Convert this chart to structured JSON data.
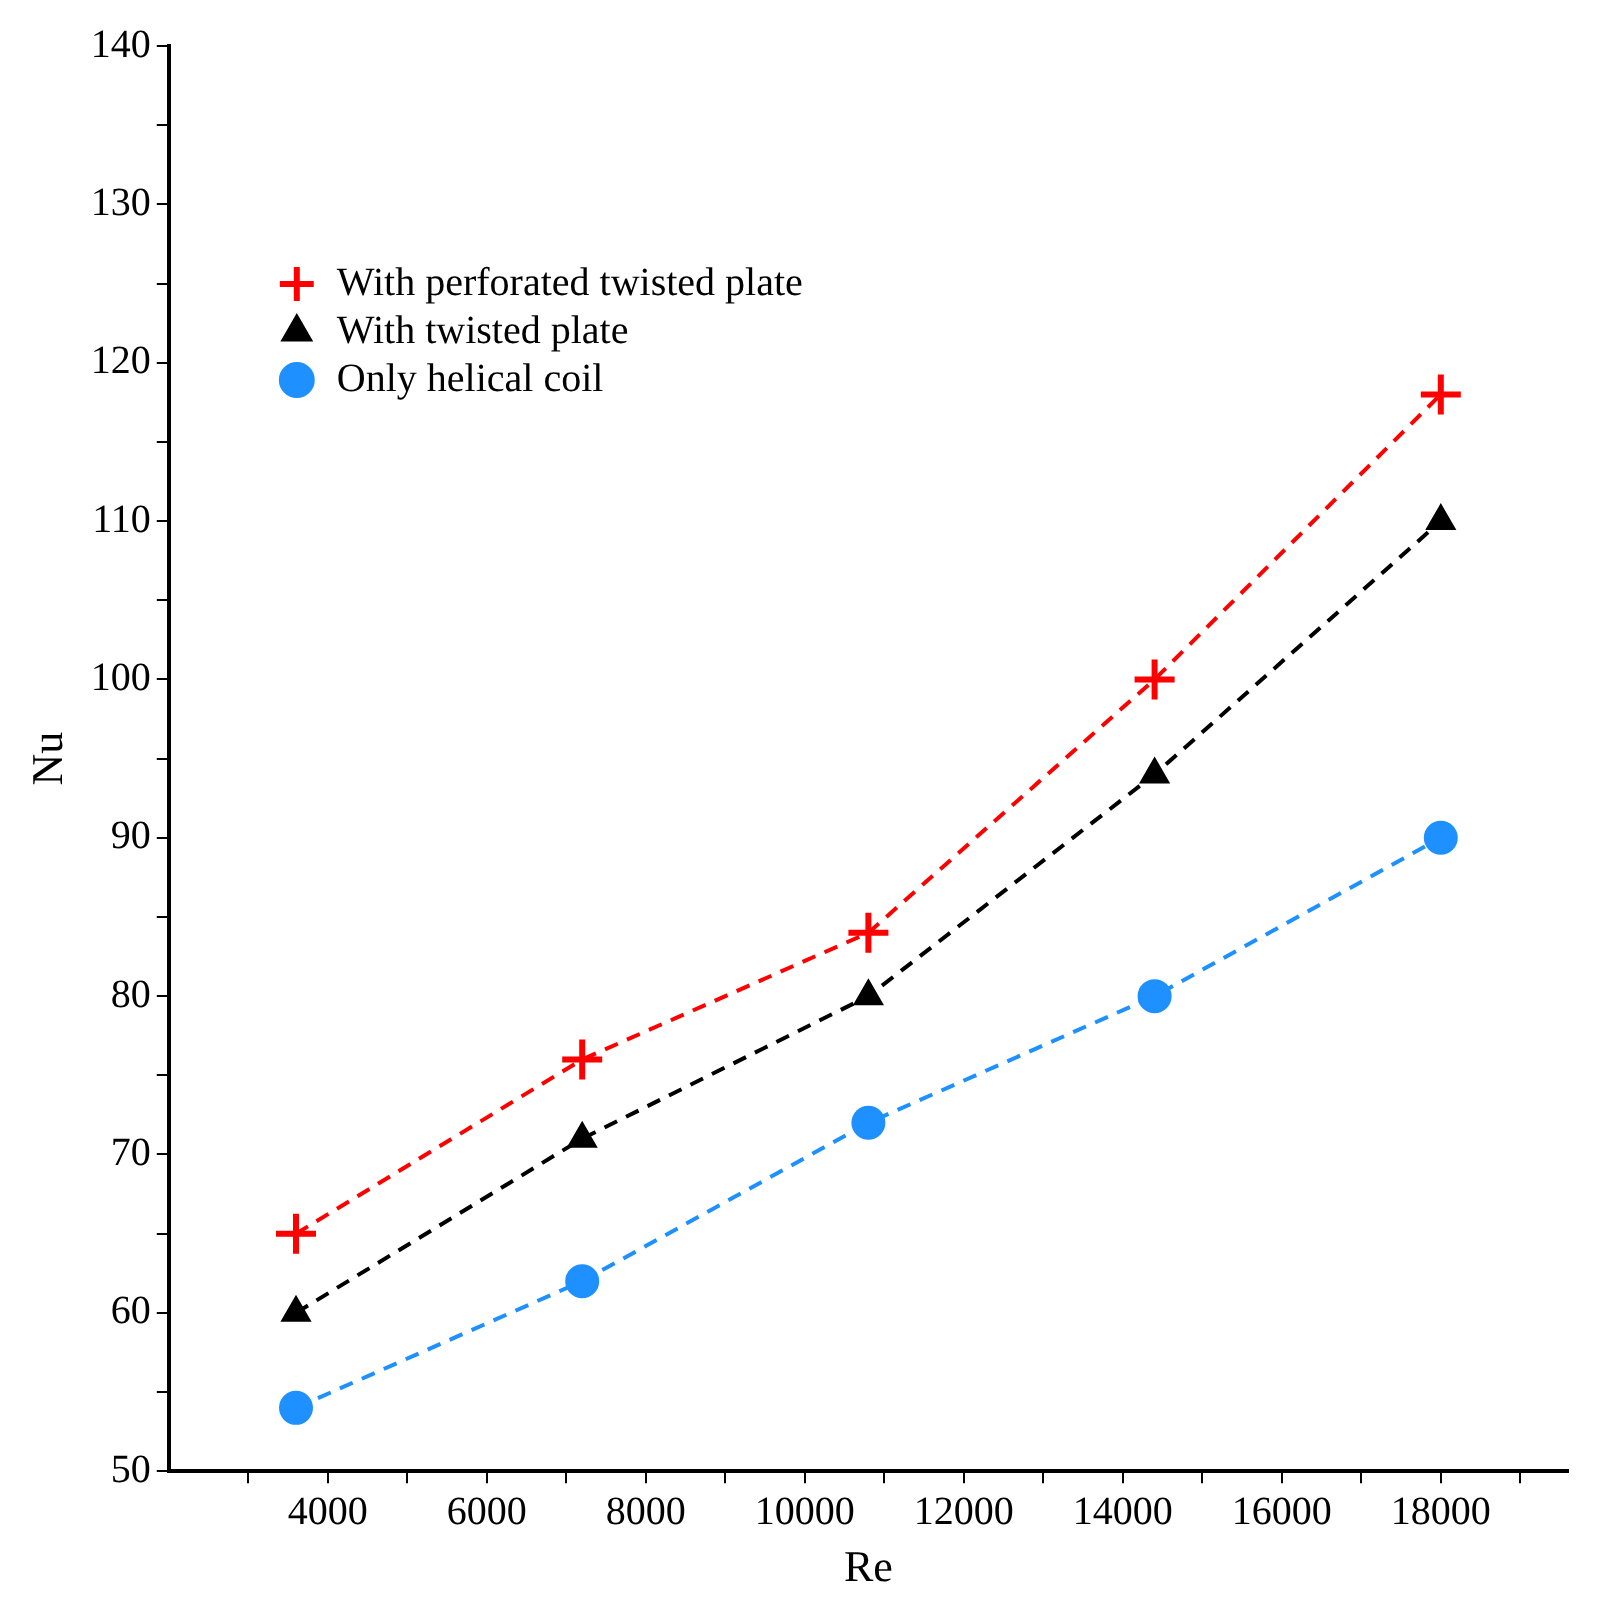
{
  "chart_data": {
    "type": "line",
    "xlabel": "Re",
    "ylabel": "Nu",
    "x": [
      3600,
      7200,
      10800,
      14400,
      18000
    ],
    "series": [
      {
        "name": "With perforated twisted plate",
        "color": "#ff0000",
        "marker": "cross",
        "values": [
          65,
          76,
          84,
          100,
          118
        ]
      },
      {
        "name": "With twisted plate",
        "color": "#000000",
        "marker": "triangle",
        "values": [
          60,
          71,
          80,
          94,
          110
        ]
      },
      {
        "name": "Only helical coil",
        "color": "#1e90ff",
        "marker": "circle",
        "values": [
          54,
          62,
          72,
          80,
          90
        ]
      }
    ],
    "xlim": [
      2000,
      19600
    ],
    "xticks": [
      {
        "value": 3000,
        "label": null
      },
      4000,
      {
        "value": 5000,
        "label": null
      },
      6000,
      {
        "value": 7000,
        "label": null
      },
      8000,
      {
        "value": 9000,
        "label": null
      },
      10000,
      {
        "value": 11000,
        "label": null
      },
      12000,
      {
        "value": 13000,
        "label": null
      },
      14000,
      {
        "value": 15000,
        "label": null
      },
      16000,
      {
        "value": 17000,
        "label": null
      },
      18000,
      {
        "value": 19000,
        "label": null
      }
    ],
    "ylim": [
      50,
      140
    ],
    "yticks": [
      50,
      {
        "value": 55,
        "label": null
      },
      60,
      {
        "value": 65,
        "label": null
      },
      70,
      {
        "value": 75,
        "label": null
      },
      80,
      {
        "value": 85,
        "label": null
      },
      90,
      {
        "value": 95,
        "label": null
      },
      100,
      {
        "value": 105,
        "label": null
      },
      110,
      {
        "value": 115,
        "label": null
      },
      120,
      {
        "value": 125,
        "label": null
      },
      130,
      {
        "value": 135,
        "label": null
      },
      140
    ],
    "grid": false,
    "legend": "top left",
    "line_style": "dashed"
  }
}
